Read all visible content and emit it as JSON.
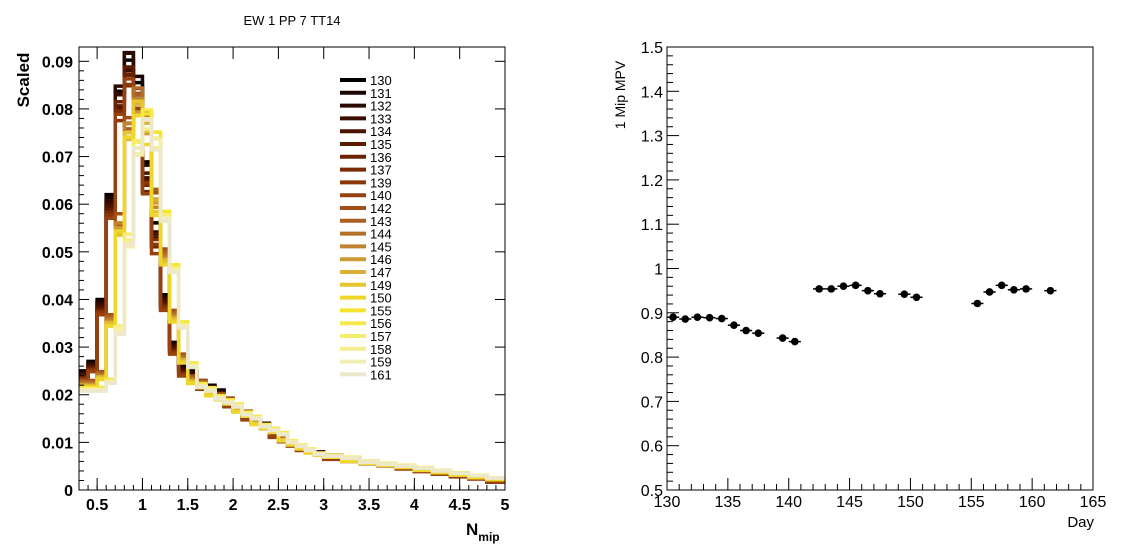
{
  "chart_data": [
    {
      "type": "line",
      "title": "EW 1 PP 7 TT14",
      "xlabel": "N",
      "xlabel_sub": "mip",
      "ylabel": "Scaled",
      "xlim": [
        0.3,
        5
      ],
      "ylim": [
        0,
        0.093
      ],
      "xticks": [
        "0.5",
        "1",
        "1.5",
        "2",
        "2.5",
        "3",
        "3.5",
        "4",
        "4.5",
        "5"
      ],
      "yticks": [
        "0",
        "0.01",
        "0.02",
        "0.03",
        "0.04",
        "0.05",
        "0.06",
        "0.07",
        "0.08",
        "0.09"
      ],
      "bin_edges": [
        0.3,
        0.4,
        0.5,
        0.6,
        0.7,
        0.8,
        0.9,
        1.0,
        1.1,
        1.2,
        1.3,
        1.4,
        1.5,
        1.6,
        1.7,
        1.8,
        1.9,
        2.0,
        2.1,
        2.2,
        2.3,
        2.4,
        2.5,
        2.6,
        2.7,
        2.8,
        2.9,
        3.0,
        3.2,
        3.4,
        3.6,
        3.8,
        4.0,
        4.2,
        4.4,
        4.6,
        4.8,
        5.0
      ],
      "base_shape": [
        0.025,
        0.027,
        0.04,
        0.062,
        0.085,
        0.092,
        0.086,
        0.068,
        0.055,
        0.041,
        0.031,
        0.026,
        0.025,
        0.023,
        0.022,
        0.021,
        0.019,
        0.018,
        0.016,
        0.015,
        0.014,
        0.012,
        0.011,
        0.01,
        0.009,
        0.0085,
        0.008,
        0.007,
        0.0065,
        0.006,
        0.0055,
        0.0048,
        0.0042,
        0.0036,
        0.003,
        0.0025,
        0.0018
      ],
      "legend_position": "top-right",
      "series": [
        {
          "name": "130",
          "color": "#000000",
          "peak_shift": 0.0,
          "scale": 1.0
        },
        {
          "name": "131",
          "color": "#1a0500",
          "peak_shift": 0.0,
          "scale": 0.99
        },
        {
          "name": "132",
          "color": "#2b0a00",
          "peak_shift": 0.0,
          "scale": 0.98
        },
        {
          "name": "133",
          "color": "#3a0f00",
          "peak_shift": 0.0,
          "scale": 0.97
        },
        {
          "name": "134",
          "color": "#4a1400",
          "peak_shift": 0.0,
          "scale": 0.96
        },
        {
          "name": "135",
          "color": "#5a1b00",
          "peak_shift": 0.0,
          "scale": 0.95
        },
        {
          "name": "136",
          "color": "#6a2300",
          "peak_shift": 0.0,
          "scale": 0.94
        },
        {
          "name": "137",
          "color": "#7a2c04",
          "peak_shift": 0.0,
          "scale": 0.94
        },
        {
          "name": "139",
          "color": "#8a3608",
          "peak_shift": 0.0,
          "scale": 0.93
        },
        {
          "name": "140",
          "color": "#974010",
          "peak_shift": 0.0,
          "scale": 0.92
        },
        {
          "name": "142",
          "color": "#a04f18",
          "peak_shift": 0.1,
          "scale": 0.92
        },
        {
          "name": "143",
          "color": "#aa5e1f",
          "peak_shift": 0.1,
          "scale": 0.91
        },
        {
          "name": "144",
          "color": "#b47028",
          "peak_shift": 0.1,
          "scale": 0.9
        },
        {
          "name": "145",
          "color": "#c08430",
          "peak_shift": 0.1,
          "scale": 0.89
        },
        {
          "name": "146",
          "color": "#cc9a35",
          "peak_shift": 0.1,
          "scale": 0.88
        },
        {
          "name": "147",
          "color": "#d9b035",
          "peak_shift": 0.1,
          "scale": 0.88
        },
        {
          "name": "149",
          "color": "#e6c52e",
          "peak_shift": 0.1,
          "scale": 0.87
        },
        {
          "name": "150",
          "color": "#efd62a",
          "peak_shift": 0.1,
          "scale": 0.86
        },
        {
          "name": "155",
          "color": "#f5e32e",
          "peak_shift": 0.2,
          "scale": 0.86
        },
        {
          "name": "156",
          "color": "#f7e84a",
          "peak_shift": 0.2,
          "scale": 0.85
        },
        {
          "name": "157",
          "color": "#f8ec6c",
          "peak_shift": 0.2,
          "scale": 0.85
        },
        {
          "name": "158",
          "color": "#f7ee90",
          "peak_shift": 0.2,
          "scale": 0.84
        },
        {
          "name": "159",
          "color": "#f2edb4",
          "peak_shift": 0.2,
          "scale": 0.84
        },
        {
          "name": "161",
          "color": "#ece8cc",
          "peak_shift": 0.2,
          "scale": 0.83
        }
      ]
    },
    {
      "type": "scatter",
      "title": "",
      "xlabel": "Day",
      "ylabel": "1 Mip MPV",
      "xlim": [
        130,
        165
      ],
      "ylim": [
        0.5,
        1.5
      ],
      "xticks": [
        "130",
        "135",
        "140",
        "145",
        "150",
        "155",
        "160",
        "165"
      ],
      "yticks": [
        "0.5",
        "0.6",
        "0.7",
        "0.8",
        "0.9",
        "1",
        "1.1",
        "1.2",
        "1.3",
        "1.4",
        "1.5"
      ],
      "marker_color": "#000000",
      "points": [
        {
          "x": 130.5,
          "y": 0.89
        },
        {
          "x": 131.5,
          "y": 0.886
        },
        {
          "x": 132.5,
          "y": 0.89
        },
        {
          "x": 133.5,
          "y": 0.889
        },
        {
          "x": 134.5,
          "y": 0.887
        },
        {
          "x": 135.5,
          "y": 0.872
        },
        {
          "x": 136.5,
          "y": 0.86
        },
        {
          "x": 137.5,
          "y": 0.854
        },
        {
          "x": 139.5,
          "y": 0.843
        },
        {
          "x": 140.5,
          "y": 0.835
        },
        {
          "x": 142.5,
          "y": 0.954
        },
        {
          "x": 143.5,
          "y": 0.954
        },
        {
          "x": 144.5,
          "y": 0.96
        },
        {
          "x": 145.5,
          "y": 0.962
        },
        {
          "x": 146.5,
          "y": 0.95
        },
        {
          "x": 147.5,
          "y": 0.943
        },
        {
          "x": 149.5,
          "y": 0.942
        },
        {
          "x": 150.5,
          "y": 0.935
        },
        {
          "x": 155.5,
          "y": 0.921
        },
        {
          "x": 156.5,
          "y": 0.947
        },
        {
          "x": 157.5,
          "y": 0.962
        },
        {
          "x": 158.5,
          "y": 0.952
        },
        {
          "x": 159.5,
          "y": 0.954
        },
        {
          "x": 161.5,
          "y": 0.95
        }
      ]
    }
  ]
}
